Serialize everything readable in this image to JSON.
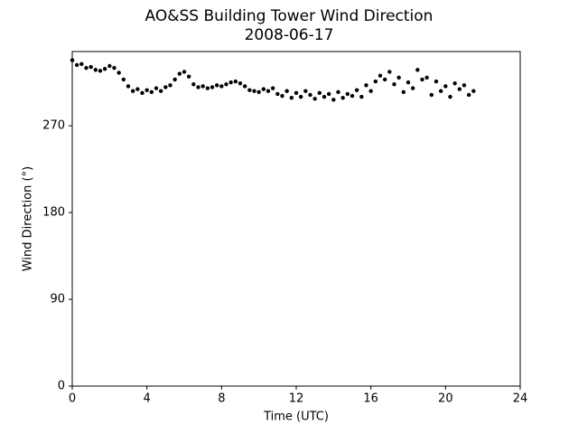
{
  "chart_data": {
    "type": "scatter",
    "title": "AO&SS Building Tower Wind Direction",
    "subtitle": "2008-06-17",
    "x_label": "Time (UTC)",
    "y_label": "Wind Direction (°)",
    "color": "#000000",
    "xlim": [
      0,
      24
    ],
    "xticks": [
      0,
      4,
      8,
      12,
      16,
      20,
      24
    ],
    "ylim": [
      0,
      347
    ],
    "yticks": [
      0,
      90,
      180,
      270
    ],
    "x": [
      0,
      0.25,
      0.5,
      0.75,
      1,
      1.25,
      1.5,
      1.75,
      2,
      2.25,
      2.5,
      2.75,
      3,
      3.25,
      3.5,
      3.75,
      4,
      4.25,
      4.5,
      4.75,
      5,
      5.25,
      5.5,
      5.75,
      6,
      6.25,
      6.5,
      6.75,
      7,
      7.25,
      7.5,
      7.75,
      8,
      8.25,
      8.5,
      8.75,
      9,
      9.25,
      9.5,
      9.75,
      10,
      10.25,
      10.5,
      10.75,
      11,
      11.25,
      11.5,
      11.75,
      12,
      12.25,
      12.5,
      12.75,
      13,
      13.25,
      13.5,
      13.75,
      14,
      14.25,
      14.5,
      14.75,
      15,
      15.25,
      15.5,
      15.75,
      16,
      16.25,
      16.5,
      16.75,
      17,
      17.25,
      17.5,
      17.75,
      18,
      18.25,
      18.5,
      18.75,
      19,
      19.25,
      19.5,
      19.75,
      20,
      20.25,
      20.5,
      20.75,
      21,
      21.25,
      21.5
    ],
    "values": [
      338,
      333,
      334,
      330,
      331,
      328,
      327,
      329,
      332,
      330,
      325,
      318,
      311,
      306,
      308,
      304,
      307,
      305,
      309,
      306,
      310,
      312,
      318,
      324,
      326,
      321,
      313,
      310,
      311,
      309,
      310,
      312,
      311,
      313,
      315,
      316,
      314,
      311,
      307,
      306,
      305,
      308,
      306,
      309,
      303,
      301,
      306,
      299,
      304,
      300,
      306,
      302,
      298,
      304,
      300,
      303,
      297,
      305,
      299,
      303,
      301,
      307,
      300,
      312,
      306,
      316,
      322,
      318,
      326,
      313,
      320,
      305,
      315,
      309,
      328,
      318,
      320,
      302,
      316,
      306,
      311,
      300,
      314,
      308,
      312,
      302,
      306
    ]
  }
}
